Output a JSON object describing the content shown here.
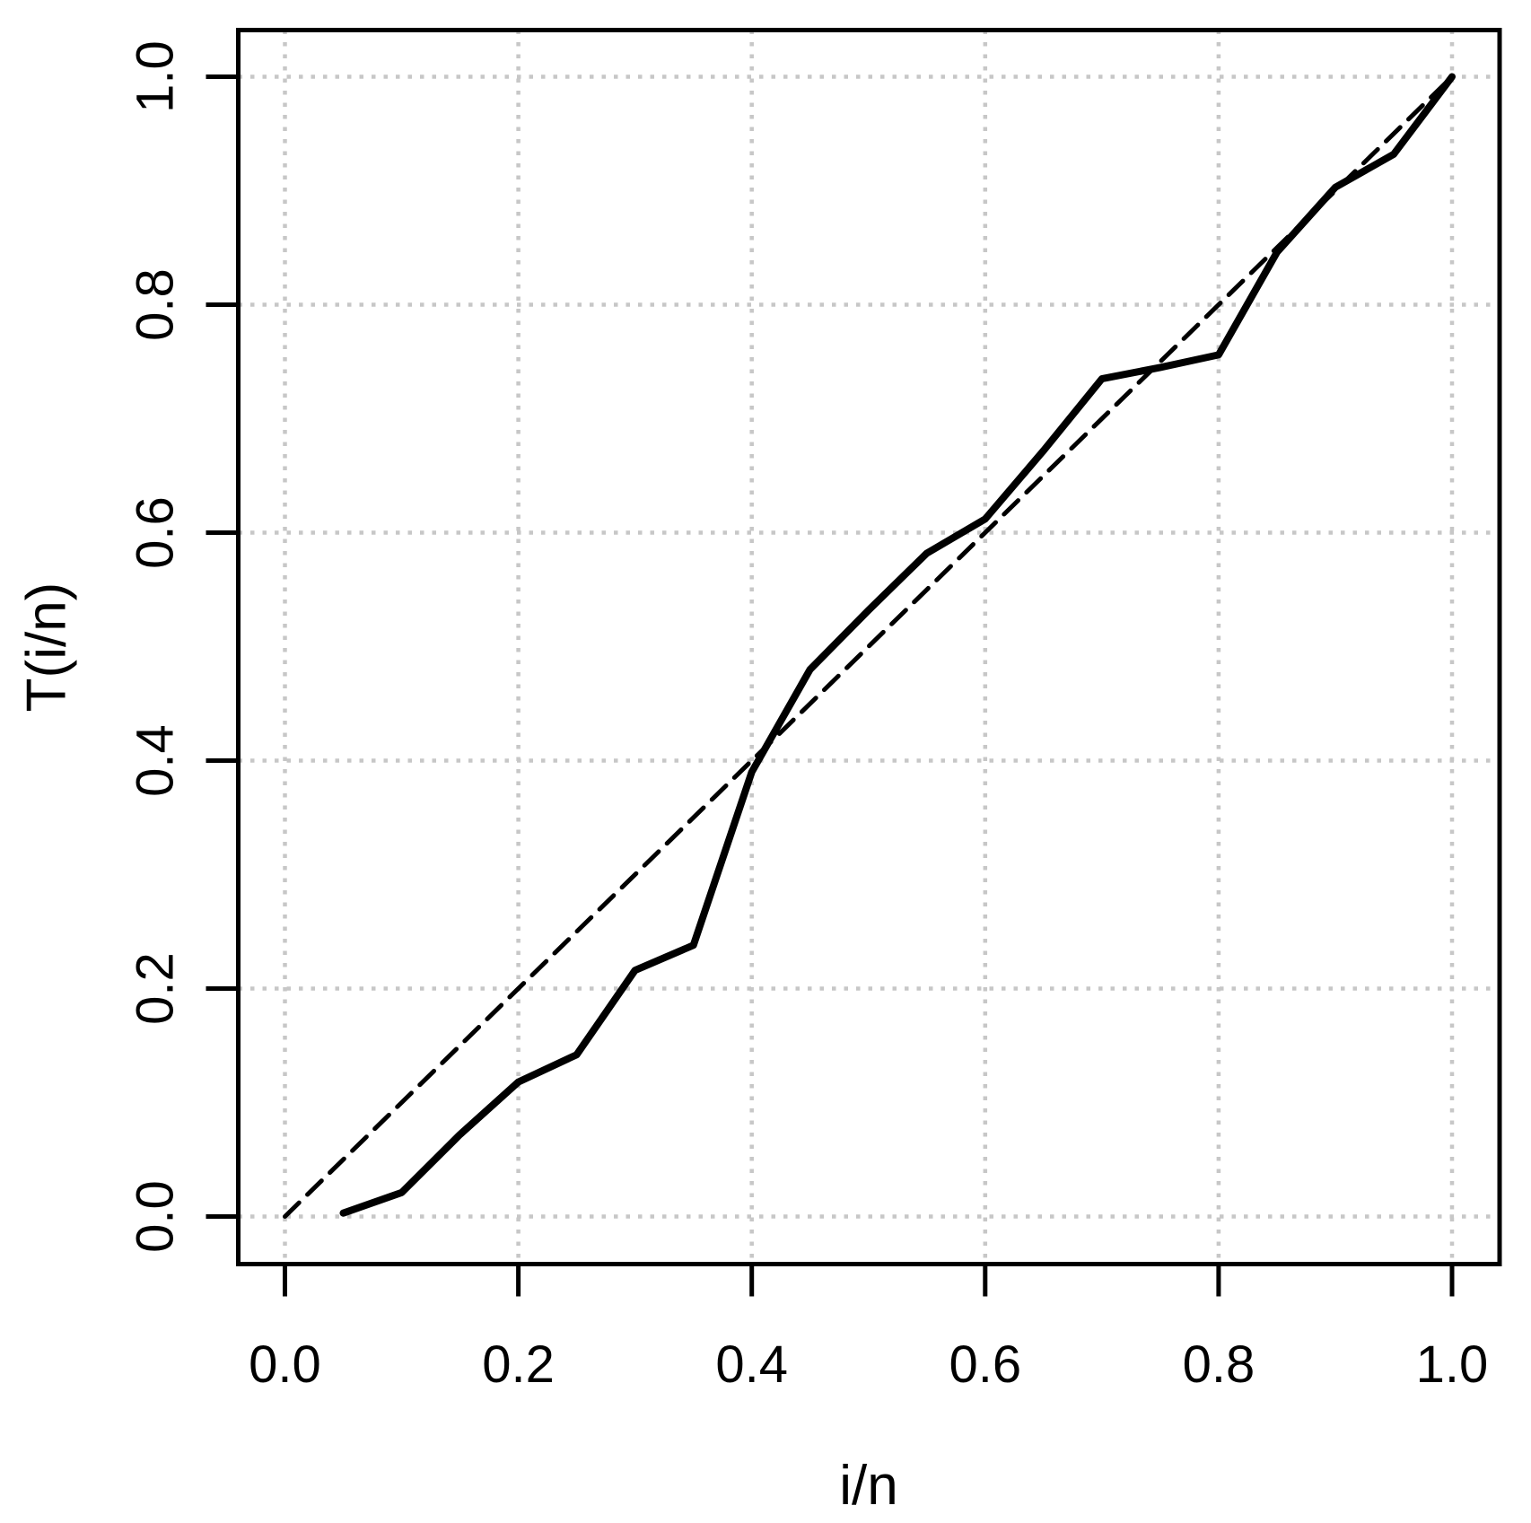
{
  "chart_data": {
    "type": "line",
    "title": "",
    "xlabel": "i/n",
    "ylabel": "T(i/n)",
    "xlim": [
      0,
      1
    ],
    "ylim": [
      0,
      1
    ],
    "grid": {
      "style": "dotted",
      "shown": true
    },
    "legend_position": "none",
    "x_ticks": {
      "values": [
        0,
        0.2,
        0.4,
        0.6,
        0.8,
        1.0
      ],
      "labels": [
        "0.0",
        "0.2",
        "0.4",
        "0.6",
        "0.8",
        "1.0"
      ]
    },
    "y_ticks": {
      "values": [
        0,
        0.2,
        0.4,
        0.6,
        0.8,
        1.0
      ],
      "labels": [
        "0.0",
        "0.2",
        "0.4",
        "0.6",
        "0.8",
        "1.0"
      ]
    },
    "series": [
      {
        "name": "scaled-TTT-transform-curve",
        "style": "solid",
        "x": [
          0.05,
          0.1,
          0.15,
          0.2,
          0.25,
          0.3,
          0.35,
          0.4,
          0.45,
          0.5,
          0.55,
          0.6,
          0.65,
          0.7,
          0.75,
          0.8,
          0.85,
          0.9,
          0.95,
          1.0
        ],
        "y": [
          0.003,
          0.021,
          0.072,
          0.118,
          0.142,
          0.216,
          0.238,
          0.39,
          0.48,
          0.532,
          0.582,
          0.612,
          0.672,
          0.735,
          0.745,
          0.756,
          0.846,
          0.903,
          0.932,
          1.0
        ]
      },
      {
        "name": "diagonal-reference-line",
        "style": "dashed",
        "x": [
          0,
          1
        ],
        "y": [
          0,
          1
        ]
      }
    ],
    "colors": {
      "curve": "#000000",
      "reference": "#000000",
      "grid": "#c7c7c7",
      "text": "#000000",
      "background": "#ffffff"
    }
  }
}
